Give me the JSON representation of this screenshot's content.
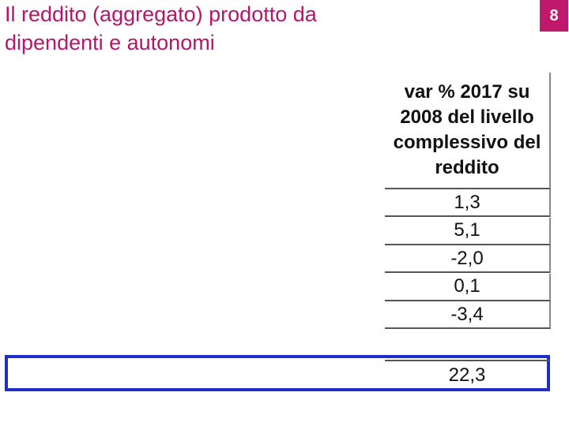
{
  "header": {
    "title_lines": [
      "Il reddito (aggregato) prodotto da",
      "dipendenti e autonomi"
    ],
    "page_number": "8"
  },
  "table": {
    "column_header": "var % 2017 su 2008 del livello complessivo del reddito",
    "rows": [
      "1,3",
      "5,1",
      "-2,0",
      "0,1",
      "-3,4"
    ],
    "highlighted_row": "22,3"
  }
}
